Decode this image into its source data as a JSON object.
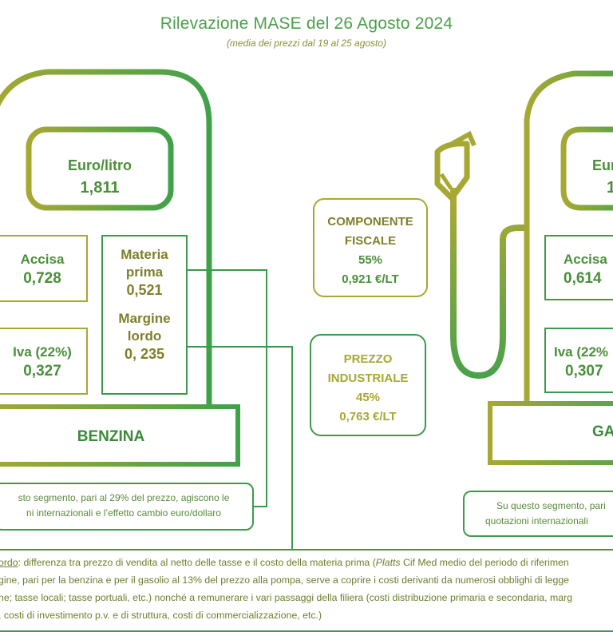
{
  "title": "Rilevazione MASE del 26 Agosto 2024",
  "subtitle": "(media dei prezzi dal 19 al 25 agosto)",
  "left_pump": {
    "price_label": "Euro/litro",
    "price_value": "1,811",
    "accisa_label": "Accisa",
    "accisa_value": "0,728",
    "iva_label": "Iva (22%)",
    "iva_value": "0,327",
    "materia_label_1": "Materia",
    "materia_label_2": "prima",
    "materia_value": "0,521",
    "margine_label_1": "Margine",
    "margine_label_2": "lordo",
    "margine_value": "0, 235",
    "fuel_name": "BENZINA",
    "note_line_1": "sto segmento, pari al 29% del prezzo, agiscono le",
    "note_line_2": "ni internazionali e l’effetto cambio euro/dollaro"
  },
  "right_pump": {
    "price_label": "Eur",
    "price_value": "1",
    "accisa_label": "Accisa",
    "accisa_value": "0,614",
    "iva_label": "Iva (22%",
    "iva_value": "0,307",
    "fuel_name": "GA",
    "note_line_1": "Su questo segmento, pari",
    "note_line_2": "quotazioni internazionali"
  },
  "center": {
    "fiscal_label_1": "COMPONENTE",
    "fiscal_label_2": "FISCALE",
    "fiscal_pct": "55%",
    "fiscal_value": "0,921 €/LT",
    "industrial_label_1": "PREZZO",
    "industrial_label_2": "INDUSTRIALE",
    "industrial_pct": "45%",
    "industrial_value": "0,763 €/LT"
  },
  "bottom_note": {
    "line_1_prefix": "ordo",
    "line_1_text": ": differenza tra prezzo di vendita al netto delle tasse e il costo della materia prima (",
    "line_1_italic": "Platts",
    "line_1_suffix": " Cif Med medio del periodo di riferimen",
    "line_2": "gine, pari per la benzina e per il gasolio al 13% del prezzo alla pompa, serve a coprire i costi derivanti da numerosi obblighi di legge",
    "line_3": "ne; tasse locali; tasse portuali, etc.) nonché a remunerare i vari passaggi della filiera (costi distribuzione primaria e secondaria, marg",
    "line_4": ", costi di investimento p.v. e di struttura, costi di commercializzazione, etc.)"
  },
  "colors": {
    "green": "#3d9a4c",
    "olive": "#a0a535",
    "text_green": "#4a8f3a",
    "text_olive": "#7f7f2a"
  }
}
